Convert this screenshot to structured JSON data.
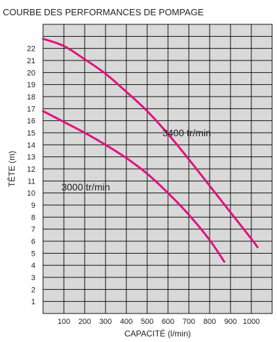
{
  "chart_data": {
    "type": "line",
    "title": "COURBE DES PERFORMANCES DE POMPAGE",
    "xlabel": "CAPACITÉ (l/min)",
    "ylabel": "TÊTE (m)",
    "xlim": [
      0,
      1100
    ],
    "ylim": [
      0,
      24
    ],
    "x_ticks": [
      "100",
      "200",
      "300",
      "400",
      "500",
      "600",
      "700",
      "800",
      "900",
      "1000"
    ],
    "y_ticks": [
      "1",
      "2",
      "3",
      "4",
      "5",
      "6",
      "7",
      "8",
      "9",
      "10",
      "11",
      "12",
      "13",
      "14",
      "15",
      "16",
      "17",
      "18",
      "19",
      "20",
      "21",
      "22"
    ],
    "grid": true,
    "colors": {
      "plot_bg": "#d9d9d9",
      "grid": "#111111",
      "series": "#e0127c"
    },
    "series": [
      {
        "name": "3400 tr/min",
        "label_x": 690,
        "label_y": 14.7,
        "points": [
          [
            0,
            22.8
          ],
          [
            100,
            22.2
          ],
          [
            200,
            21.1
          ],
          [
            300,
            19.9
          ],
          [
            400,
            18.4
          ],
          [
            500,
            16.8
          ],
          [
            600,
            14.9
          ],
          [
            700,
            12.8
          ],
          [
            800,
            10.6
          ],
          [
            900,
            8.4
          ],
          [
            1000,
            6.2
          ],
          [
            1030,
            5.5
          ]
        ]
      },
      {
        "name": "3000 tr/min",
        "label_x": 205,
        "label_y": 10.2,
        "points": [
          [
            0,
            16.8
          ],
          [
            100,
            15.9
          ],
          [
            200,
            15.0
          ],
          [
            300,
            14.0
          ],
          [
            400,
            12.9
          ],
          [
            500,
            11.6
          ],
          [
            600,
            10.0
          ],
          [
            700,
            8.2
          ],
          [
            800,
            6.1
          ],
          [
            870,
            4.3
          ]
        ]
      }
    ]
  }
}
